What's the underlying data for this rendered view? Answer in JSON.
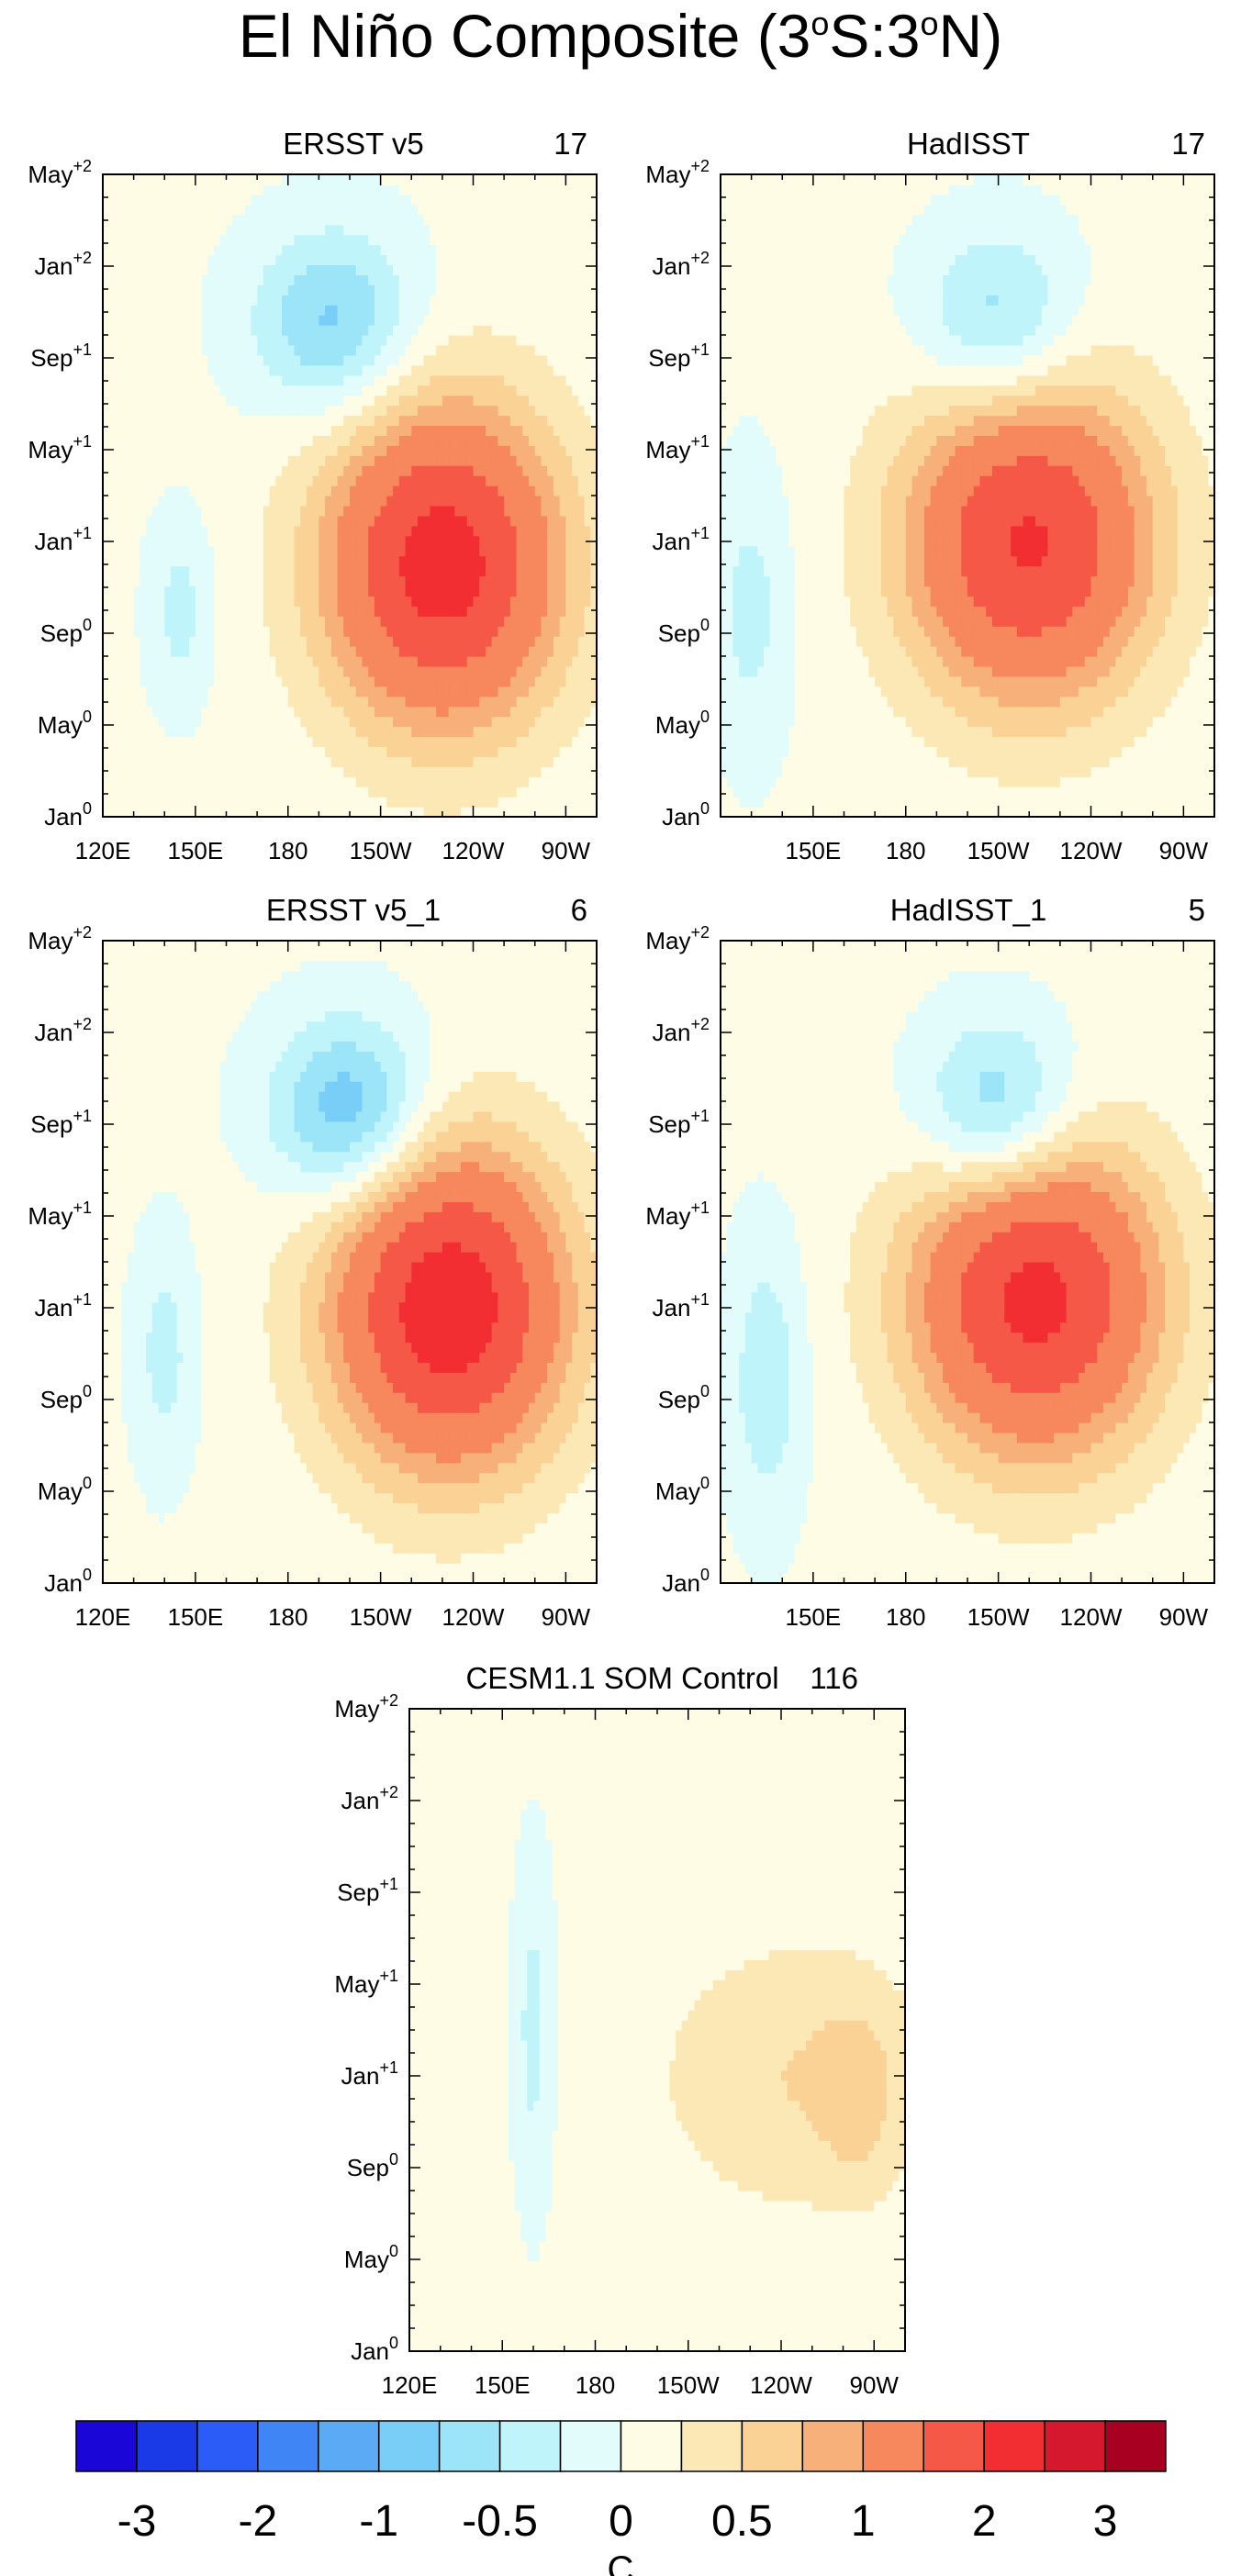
{
  "figure": {
    "title": "El Niño Composite (3",
    "title_mid": "S:3",
    "title_end": "N)",
    "title_deg": "o"
  },
  "colors": [
    "#1a06d6",
    "#1a3ae8",
    "#2b5cf7",
    "#3f85f5",
    "#5aaaf5",
    "#78cef7",
    "#9ce4f7",
    "#bff5fa",
    "#e2fcfc",
    "#fffce6",
    "#fce8b4",
    "#fad296",
    "#f8b07a",
    "#f7875c",
    "#f55846",
    "#f22e33",
    "#d6182e",
    "#a80020"
  ],
  "chart_data": [
    {
      "type": "heatmap",
      "title": "ERSST v5",
      "count": "17",
      "panel": "p1",
      "xticks": [
        "120E",
        "150E",
        "180",
        "150W",
        "120W",
        "90W"
      ],
      "yticks": [
        "Jan",
        "May",
        "Sep",
        "Jan",
        "May",
        "Sep",
        "Jan",
        "May"
      ],
      "ysup": [
        "0",
        "0",
        "0",
        "+1",
        "+1",
        "+1",
        "+2",
        "+2"
      ],
      "x_range": [
        "120E",
        "80W"
      ],
      "y_range": [
        "Jan0",
        "May+2"
      ],
      "ylabel": "",
      "xlabel": "",
      "features": [
        {
          "lon": -130,
          "t": 11,
          "amp": 2.2,
          "wx": 38,
          "wt": 7
        },
        {
          "lon": -165,
          "t": 21.5,
          "amp": -0.9,
          "wx": 26,
          "wt": 4
        },
        {
          "lon": 145,
          "t": 9,
          "amp": -0.4,
          "wx": 10,
          "wt": 4
        }
      ]
    },
    {
      "type": "heatmap",
      "title": "HadISST",
      "count": "17",
      "panel": "p2",
      "xticks": [
        "150E",
        "180",
        "150W",
        "120W",
        "90W"
      ],
      "yticks": [
        "Jan",
        "May",
        "Sep",
        "Jan",
        "May",
        "Sep",
        "Jan",
        "May"
      ],
      "ysup": [
        "0",
        "0",
        "0",
        "+1",
        "+1",
        "+1",
        "+2",
        "+2"
      ],
      "x_range": [
        "120E",
        "80W"
      ],
      "y_range": [
        "Jan0",
        "May+2"
      ],
      "ylabel": "",
      "xlabel": "",
      "features": [
        {
          "lon": -140,
          "t": 12,
          "amp": 2.0,
          "wx": 40,
          "wt": 7
        },
        {
          "lon": -150,
          "t": 21.5,
          "amp": -0.8,
          "wx": 25,
          "wt": 4
        },
        {
          "lon": 130,
          "t": 9,
          "amp": -0.4,
          "wx": 12,
          "wt": 6
        }
      ]
    },
    {
      "type": "heatmap",
      "title": "ERSST v5_1",
      "count": "6",
      "panel": "p3",
      "xticks": [
        "120E",
        "150E",
        "180",
        "150W",
        "120W",
        "90W"
      ],
      "yticks": [
        "Jan",
        "May",
        "Sep",
        "Jan",
        "May",
        "Sep",
        "Jan",
        "May"
      ],
      "ysup": [
        "0",
        "0",
        "0",
        "+1",
        "+1",
        "+1",
        "+2",
        "+2"
      ],
      "x_range": [
        "120E",
        "80W"
      ],
      "y_range": [
        "Jan0",
        "May+2"
      ],
      "ylabel": "",
      "xlabel": "",
      "features": [
        {
          "lon": -128,
          "t": 12,
          "amp": 2.3,
          "wx": 38,
          "wt": 7
        },
        {
          "lon": -160,
          "t": 20.5,
          "amp": -1.1,
          "wx": 25,
          "wt": 4
        },
        {
          "lon": 140,
          "t": 10,
          "amp": -0.4,
          "wx": 10,
          "wt": 5
        }
      ]
    },
    {
      "type": "heatmap",
      "title": "HadISST_1",
      "count": "5",
      "panel": "p4",
      "xticks": [
        "150E",
        "180",
        "150W",
        "120W",
        "90W"
      ],
      "yticks": [
        "Jan",
        "May",
        "Sep",
        "Jan",
        "May",
        "Sep",
        "Jan",
        "May"
      ],
      "ysup": [
        "0",
        "0",
        "0",
        "+1",
        "+1",
        "+1",
        "+2",
        "+2"
      ],
      "x_range": [
        "120E",
        "80W"
      ],
      "y_range": [
        "Jan0",
        "May+2"
      ],
      "ylabel": "",
      "xlabel": "",
      "features": [
        {
          "lon": -138,
          "t": 12.5,
          "amp": 2.1,
          "wx": 40,
          "wt": 7
        },
        {
          "lon": -150,
          "t": 20.5,
          "amp": -1.0,
          "wx": 25,
          "wt": 4
        },
        {
          "lon": 135,
          "t": 9,
          "amp": -0.5,
          "wx": 12,
          "wt": 6
        }
      ]
    },
    {
      "type": "heatmap",
      "title": "CESM1.1 SOM Control",
      "count": "116",
      "panel": "p5",
      "xticks": [
        "120E",
        "150E",
        "180",
        "150W",
        "120W",
        "90W"
      ],
      "yticks": [
        "Jan",
        "May",
        "Sep",
        "Jan",
        "May",
        "Sep",
        "Jan",
        "May"
      ],
      "ysup": [
        "0",
        "0",
        "0",
        "+1",
        "+1",
        "+1",
        "+2",
        "+2"
      ],
      "x_range": [
        "120E",
        "80W"
      ],
      "y_range": [
        "Jan0",
        "May+2"
      ],
      "ylabel": "",
      "xlabel": "",
      "features": [
        {
          "lon": -115,
          "t": 12,
          "amp": 0.45,
          "wx": 45,
          "wt": 6
        },
        {
          "lon": -95,
          "t": 11,
          "amp": 0.3,
          "wx": 12,
          "wt": 4
        },
        {
          "lon": 160,
          "t": 14,
          "amp": -0.4,
          "wx": 6,
          "wt": 7
        }
      ]
    }
  ],
  "colorbar": {
    "labels": [
      "-3",
      "-2",
      "-1",
      "-0.5",
      "0",
      "0.5",
      "1",
      "2",
      "3"
    ],
    "unit": "C"
  }
}
